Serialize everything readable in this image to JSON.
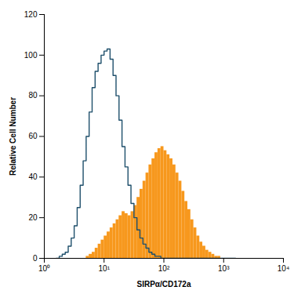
{
  "chart_data": {
    "type": "histogram",
    "x_label": "SIRPα/CD172a",
    "y_label": "Relative Cell Number",
    "log": "x",
    "xlim": [
      1,
      10000
    ],
    "xticks": [
      {
        "value": 1,
        "label": "10⁰"
      },
      {
        "value": 10,
        "label": "10¹"
      },
      {
        "value": 100,
        "label": "10²"
      },
      {
        "value": 1000,
        "label": "10³"
      },
      {
        "value": 10000,
        "label": "10⁴"
      }
    ],
    "ylim": [
      0,
      120
    ],
    "yticks": [
      0,
      20,
      40,
      60,
      80,
      100,
      120
    ],
    "grid": false,
    "bins": [
      1.585,
      1.778,
      1.995,
      2.239,
      2.512,
      2.818,
      3.162,
      3.548,
      3.981,
      4.467,
      5.012,
      5.623,
      6.31,
      7.079,
      7.943,
      8.913,
      10,
      11.22,
      12.59,
      14.13,
      15.85,
      17.78,
      19.95,
      22.39,
      25.12,
      28.18,
      31.62,
      35.48,
      39.81,
      44.67,
      50.12,
      56.23,
      63.1,
      70.79,
      79.43,
      89.13,
      100,
      112.2,
      125.9,
      141.3,
      158.5,
      177.8,
      199.5,
      223.9,
      251.2,
      281.8,
      316.2,
      354.8,
      398.1,
      446.7,
      501.2,
      562.3,
      631,
      707.9,
      794.3,
      891.3,
      1000,
      1122,
      1259,
      1413,
      1585
    ],
    "series": [
      {
        "type": "bar",
        "color": "#f7981d",
        "values": [
          0,
          0,
          0,
          0,
          0,
          0,
          0,
          0,
          0,
          0,
          1,
          2,
          3,
          5,
          7,
          9,
          11,
          13,
          15,
          17,
          19,
          21,
          23,
          22,
          21,
          23,
          26,
          30,
          34,
          38,
          42,
          46,
          49,
          52,
          54,
          55,
          53,
          51,
          49,
          46,
          42,
          38,
          33,
          28,
          24,
          19,
          15,
          11,
          8,
          6,
          4,
          3,
          2,
          1,
          1,
          0,
          0,
          0,
          0,
          0
        ]
      },
      {
        "type": "line",
        "color": "#1e4f6b",
        "values": [
          0,
          1,
          2,
          3,
          6,
          10,
          16,
          25,
          36,
          48,
          60,
          72,
          84,
          92,
          96,
          100,
          102,
          103,
          98,
          90,
          80,
          68,
          55,
          45,
          36,
          27,
          20,
          14,
          10,
          7,
          5,
          3,
          2,
          1,
          1,
          0,
          0,
          0,
          0,
          0,
          0,
          0,
          0,
          0,
          0,
          0,
          0,
          0,
          0,
          0,
          0,
          0,
          0,
          0,
          0,
          0,
          0,
          0,
          0,
          0
        ]
      }
    ]
  }
}
